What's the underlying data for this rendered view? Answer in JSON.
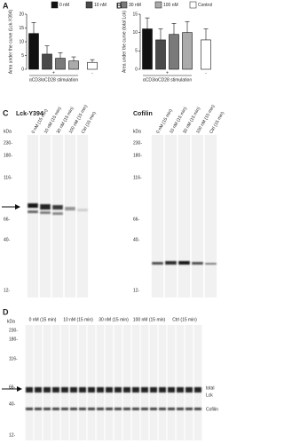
{
  "legend": [
    {
      "name": "0 nM",
      "color": "#111111"
    },
    {
      "name": "10 nM",
      "color": "#4a4a4a"
    },
    {
      "name": "30 nM",
      "color": "#7a7a7a"
    },
    {
      "name": "100 nM",
      "color": "#ababab"
    },
    {
      "name": "Control",
      "color": "#ffffff"
    }
  ],
  "chart_data": [
    {
      "type": "bar",
      "panel": "A",
      "y_label": "Area under the curve (Lck-Y394)",
      "values": [
        13,
        5.5,
        4,
        3,
        2.5
      ],
      "errors": [
        4,
        3,
        2,
        1.5,
        1
      ],
      "ylim": [
        0,
        20
      ],
      "yticks": [
        0,
        5,
        10,
        15,
        20
      ],
      "stimulation_labels": [
        "+",
        "-"
      ],
      "x_label": "αCD3/αCD28 stimulation"
    },
    {
      "type": "bar",
      "panel": "B",
      "y_label": "Area under the curve (total Lck)",
      "values": [
        11,
        8,
        9.5,
        10,
        8
      ],
      "errors": [
        3,
        3,
        3,
        3,
        3
      ],
      "ylim": [
        0,
        15
      ],
      "yticks": [
        0,
        5,
        10,
        15
      ],
      "stimulation_labels": [
        "+",
        "-"
      ],
      "x_label": "αCD3/αCD28 stimulation"
    }
  ],
  "panel_c": {
    "label": "C",
    "blots": [
      {
        "title": "Lck-Y394",
        "kda_label": "kDa",
        "markers": [
          "230-",
          "180-",
          "116-",
          "66-",
          "40-",
          "12-"
        ],
        "lanes": [
          "0 nM (15 min)",
          "10 nM (15 min)",
          "30 nM (15 min)",
          "100 nM (15 min)",
          "Ctrl (15 min)"
        ]
      },
      {
        "title": "Cofilin",
        "kda_label": "kDa",
        "markers": [
          "230-",
          "180-",
          "116-",
          "66-",
          "40-",
          "12-"
        ],
        "lanes": [
          "0 nM (15 min)",
          "10 nM (15 min)",
          "30 nM (15 min)",
          "100 nM (15 min)",
          "Ctrl (15 min)"
        ]
      }
    ]
  },
  "panel_d": {
    "label": "D",
    "kda_label": "kDa",
    "markers": [
      "230-",
      "180-",
      "116-",
      "66-",
      "40-",
      "12-"
    ],
    "lanes": [
      "0 nM (15 min)",
      "10 nM (15 min)",
      "30 nM (15 min)",
      "100 nM (15 min)",
      "Ctrl (15 min)"
    ],
    "band_labels": [
      "total",
      "Lck",
      "Cofilin"
    ]
  }
}
